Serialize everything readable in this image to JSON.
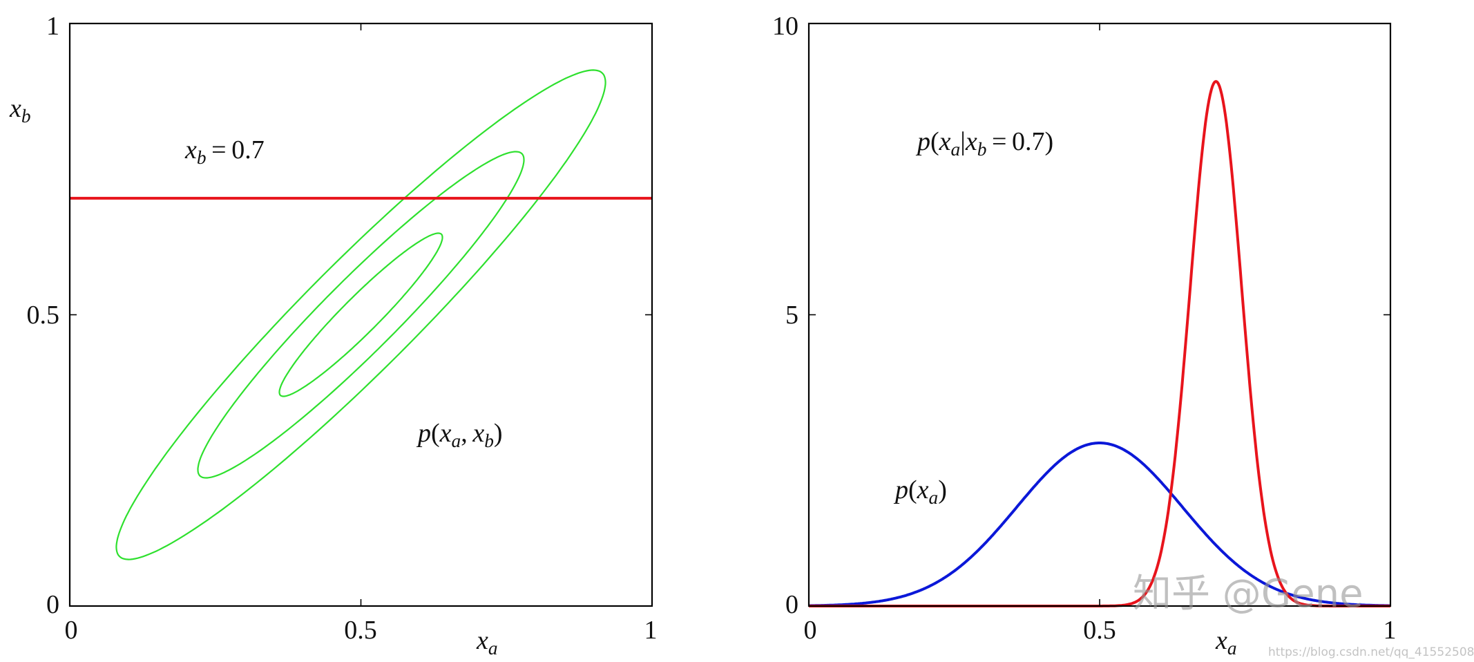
{
  "chart_data": [
    {
      "type": "line",
      "subtype": "contour",
      "xlabel": "x_a",
      "ylabel": "x_b",
      "xlim": [
        0,
        1
      ],
      "ylim": [
        0,
        1
      ],
      "xticks": [
        "0",
        "0.5",
        "1"
      ],
      "yticks": [
        "0",
        "0.5",
        "1"
      ],
      "grid": false,
      "annotations": [
        "x_b = 0.7",
        "p(x_a, x_b)"
      ],
      "gaussian": {
        "mean": [
          0.5,
          0.5
        ],
        "std": [
          0.14,
          0.14
        ],
        "correlation": 0.95
      },
      "contour_levels_sigma": [
        1,
        2,
        3
      ],
      "horizontal_line": {
        "y": 0.7,
        "color": "#e8141c"
      },
      "contour_color": "#2ee02e"
    },
    {
      "type": "line",
      "xlabel": "x_a",
      "ylabel": "",
      "xlim": [
        0,
        1
      ],
      "ylim": [
        0,
        10
      ],
      "xticks": [
        "0",
        "0.5",
        "1"
      ],
      "yticks": [
        "0",
        "5",
        "10"
      ],
      "grid": false,
      "annotations": [
        "p(x_a|x_b = 0.7)",
        "p(x_a)"
      ],
      "series": [
        {
          "name": "p(x_a)",
          "color": "#0b18d8",
          "distribution": "normal",
          "mean": 0.5,
          "std": 0.1425,
          "peak": 2.8
        },
        {
          "name": "p(x_a|x_b = 0.7)",
          "color": "#e8141c",
          "distribution": "normal",
          "mean": 0.7,
          "std": 0.0443,
          "peak": 9.0
        }
      ]
    }
  ],
  "watermark": {
    "zhihu": "知乎 @Gene",
    "csdn": "https://blog.csdn.net/qq_41552508"
  }
}
